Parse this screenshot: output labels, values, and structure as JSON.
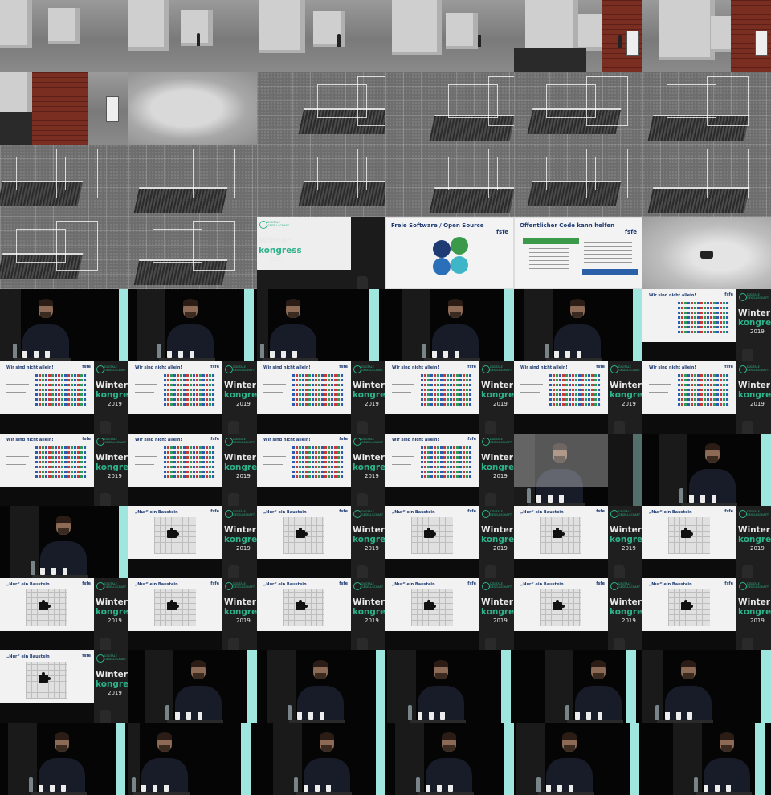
{
  "contact_sheet": {
    "columns": 6,
    "rows": 11
  },
  "event_banner": {
    "org": "DIGITALE GESELLSCHAFT",
    "word_top": "Winter",
    "word_bottom": "kongress",
    "year": "2019"
  },
  "slides": {
    "brand": "fsfe",
    "free_software": "Freie Software / Open Source",
    "public_code": "Öffentlicher Code kann helfen",
    "not_alone": "Wir sind nicht allein!",
    "building_block": "„Nur“ ein Baustein"
  },
  "frames": [
    "city",
    "city",
    "city",
    "city",
    "city",
    "city",
    "city",
    "cloud",
    "wire",
    "wire",
    "wire",
    "wire",
    "wire",
    "wire",
    "wire",
    "wire",
    "wire",
    "wire",
    "wire",
    "wire",
    "blank",
    "slide-free",
    "slide-code",
    "cloud2",
    "speaker",
    "speaker",
    "speaker",
    "speaker",
    "speaker",
    "slide-alone",
    "slide-alone",
    "slide-alone",
    "slide-alone",
    "slide-alone",
    "slide-alone",
    "slide-alone",
    "slide-alone",
    "slide-alone",
    "slide-alone",
    "slide-alone",
    "fade",
    "speaker",
    "speaker",
    "slide-block",
    "slide-block",
    "slide-block",
    "slide-block",
    "slide-block",
    "slide-block",
    "slide-block",
    "slide-block",
    "slide-block",
    "slide-block",
    "slide-block",
    "slide-block",
    "speaker",
    "speaker",
    "speaker",
    "speaker",
    "speaker",
    "speaker",
    "speaker",
    "speaker",
    "speaker",
    "speaker",
    "speaker"
  ]
}
